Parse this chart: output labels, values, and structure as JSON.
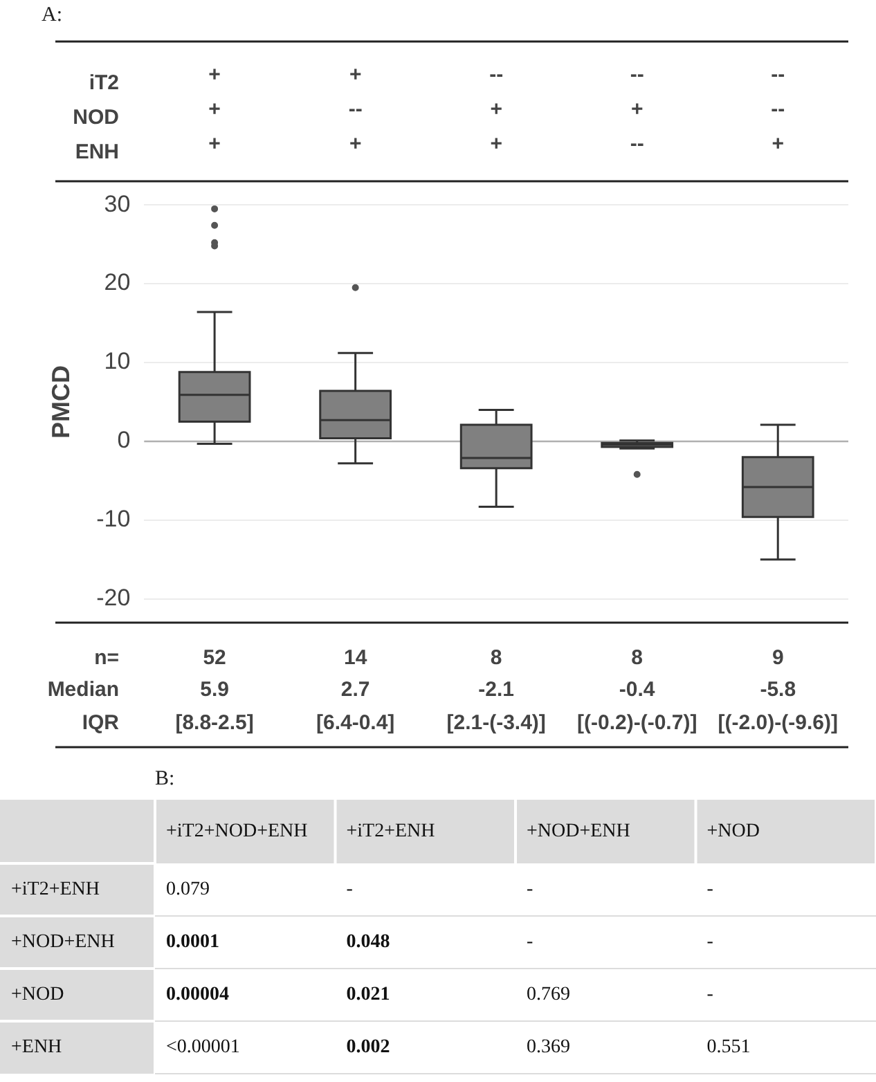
{
  "chart_data": [
    {
      "type": "box",
      "title": "A:",
      "ylabel": "PMCD",
      "categories": [
        "+\n+\n+",
        "+\n--\n+",
        "--\n+\n+",
        "--\n+\n--",
        "--\n--\n+"
      ],
      "color": "#808080",
      "boxes": [
        {
          "low": -0.3,
          "q1": 2.5,
          "median": 5.9,
          "q3": 8.8,
          "high": 16.4,
          "outliers": [
            29.5,
            27.4,
            25.2,
            24.8
          ]
        },
        {
          "low": -2.8,
          "q1": 0.4,
          "median": 2.7,
          "q3": 6.4,
          "high": 11.2,
          "outliers": [
            19.5
          ]
        },
        {
          "low": -8.3,
          "q1": -3.4,
          "median": -2.1,
          "q3": 2.1,
          "high": 4.0
        },
        {
          "low": -0.9,
          "q1": -0.7,
          "median": -0.4,
          "q3": -0.2,
          "high": 0.1,
          "outliers": [
            -4.2
          ]
        },
        {
          "low": -15.0,
          "q1": -9.6,
          "median": -5.8,
          "q3": -2.0,
          "high": 2.1
        }
      ],
      "ylim": [
        -23,
        33
      ],
      "yticks": [
        -20,
        -10,
        0,
        10,
        20,
        30
      ],
      "grid": "y",
      "ref_lines": [
        {
          "axis": "y",
          "value": 0,
          "color": "#b0b0b0"
        }
      ],
      "annotations": [
        "iT2",
        "NOD",
        "ENH",
        "n=",
        "Median",
        "IQR",
        "52",
        "5.9",
        "[8.8-2.5]",
        "14",
        "2.7",
        "[6.4-0.4]",
        "8",
        "-2.1",
        "[2.1-(-3.4)]",
        "8",
        "-0.4",
        "[(-0.2)-(-0.7)]",
        "9",
        "-5.8",
        "[(-2.0)-(-9.6)]"
      ]
    },
    {
      "type": "heatmap",
      "title": "B:",
      "categories": [
        "+iT2+NOD+ENH",
        "+iT2+ENH",
        "+NOD+ENH",
        "+NOD"
      ],
      "y_categories": [
        "+iT2+ENH",
        "+NOD+ENH",
        "+NOD",
        "+ENH"
      ],
      "cells": [
        [
          0.079,
          null,
          null,
          null
        ],
        [
          0.0001,
          0.048,
          null,
          null
        ],
        [
          4e-05,
          0.021,
          0.769,
          null
        ],
        [
          null,
          0.002,
          0.369,
          0.551
        ]
      ],
      "cell_labels": [
        [
          "0.079",
          "-",
          "-",
          "-"
        ],
        [
          "0.0001",
          "0.048",
          "-",
          "-"
        ],
        [
          "0.00004",
          "0.021",
          "0.769",
          "-"
        ],
        [
          "<0.00001",
          "0.002",
          "0.369",
          "0.551"
        ]
      ]
    }
  ]
}
